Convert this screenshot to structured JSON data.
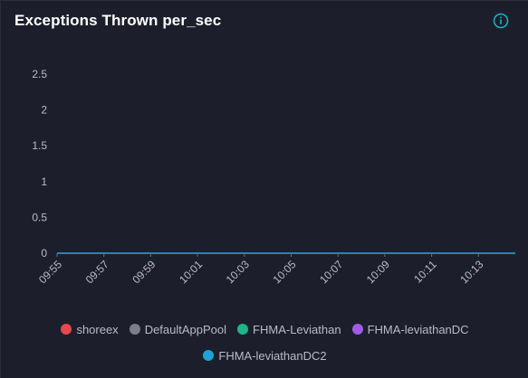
{
  "panel": {
    "title": "Exceptions Thrown per_sec",
    "info_icon": "info-circle-icon"
  },
  "colors": {
    "background": "#1c1f2b",
    "axis_text": "#b9bcc6",
    "grid": "#3a3f4e",
    "zero_line": "#2f7fb4",
    "title": "#ffffff",
    "info_icon": "#1bb3c8"
  },
  "chart_data": {
    "type": "line",
    "title": "Exceptions Thrown per_sec",
    "xlabel": "",
    "ylabel": "",
    "ylim": [
      0,
      2.5
    ],
    "yticks": [
      "0",
      "0.5",
      "1",
      "1.5",
      "2",
      "2.5"
    ],
    "x": [
      "09:55",
      "09:57",
      "09:59",
      "10:01",
      "10:03",
      "10:05",
      "10:07",
      "10:09",
      "10:11",
      "10:13"
    ],
    "grid": false,
    "legend_position": "bottom",
    "series": [
      {
        "name": "shoreex",
        "color": "#e5484d",
        "values": [
          0,
          0,
          0,
          0,
          0,
          0,
          0,
          0,
          0,
          0
        ]
      },
      {
        "name": "DefaultAppPool",
        "color": "#7a7f8c",
        "values": [
          0,
          0,
          0,
          0,
          0,
          0,
          0,
          0,
          0,
          0
        ]
      },
      {
        "name": "FHMA-Leviathan",
        "color": "#1fb58a",
        "values": [
          0,
          0,
          0,
          0,
          0,
          0,
          0,
          0,
          0,
          0
        ]
      },
      {
        "name": "FHMA-leviathanDC",
        "color": "#a05ce6",
        "values": [
          0,
          0,
          0,
          0,
          0,
          0,
          0,
          0,
          0,
          0
        ]
      },
      {
        "name": "FHMA-leviathanDC2",
        "color": "#1ea3d6",
        "values": [
          0,
          0,
          0,
          0,
          0,
          0,
          0,
          0,
          0,
          0
        ]
      }
    ]
  }
}
